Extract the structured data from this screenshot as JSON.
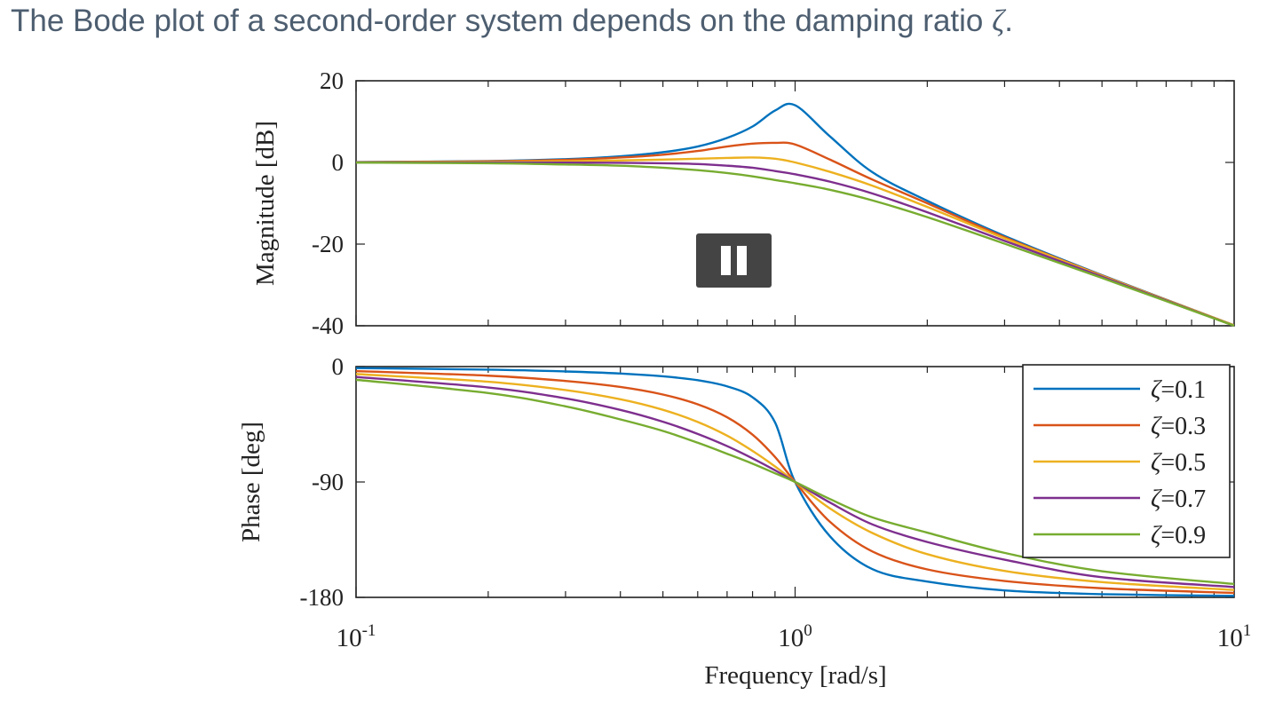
{
  "caption": {
    "text": "The Bode plot of a second-order system depends on the damping ratio ",
    "symbol": "ζ",
    "end": "."
  },
  "player": {
    "pause_icon": "pause-icon"
  },
  "chart_data": [
    {
      "type": "line",
      "panel": "magnitude",
      "xlabel": "",
      "ylabel": "Magnitude [dB]",
      "xscale": "log",
      "xlim": [
        0.1,
        10
      ],
      "ylim": [
        -40,
        20
      ],
      "yticks": [
        20,
        0,
        -20,
        -40
      ],
      "ytick_labels": [
        "20",
        "0",
        "-20",
        "-40"
      ],
      "xtick_labels": [],
      "grid": false,
      "x": [
        0.1,
        0.2,
        0.3,
        0.4,
        0.5,
        0.6,
        0.7,
        0.8,
        0.9,
        1.0,
        1.2,
        1.5,
        2,
        3,
        5,
        10
      ],
      "series": [
        {
          "name": "ζ=0.1",
          "color": "#0072bd",
          "values": [
            0.09,
            0.34,
            0.8,
            1.5,
            2.5,
            3.9,
            6.0,
            8.8,
            12.7,
            14.0,
            6.4,
            -2.4,
            -9.4,
            -18.0,
            -27.6,
            -39.9
          ]
        },
        {
          "name": "ζ=0.3",
          "color": "#d95319",
          "values": [
            0.07,
            0.28,
            0.64,
            1.2,
            1.9,
            2.8,
            3.9,
            4.6,
            4.8,
            4.4,
            0.7,
            -4.2,
            -10.0,
            -18.3,
            -27.7,
            -39.9
          ]
        },
        {
          "name": "ζ=0.5",
          "color": "#edb120",
          "values": [
            0.04,
            0.14,
            0.29,
            0.49,
            0.7,
            0.9,
            1.1,
            1.2,
            0.9,
            0.0,
            -2.3,
            -5.7,
            -10.9,
            -18.6,
            -27.8,
            -39.9
          ]
        },
        {
          "name": "ζ=0.7",
          "color": "#7e2f8e",
          "values": [
            0.0,
            -0.01,
            -0.04,
            -0.1,
            -0.2,
            -0.4,
            -0.8,
            -1.3,
            -2.1,
            -2.9,
            -4.7,
            -7.6,
            -12.2,
            -19.2,
            -28.0,
            -40.0
          ]
        },
        {
          "name": "ζ=0.9",
          "color": "#77ac30",
          "values": [
            -0.05,
            -0.2,
            -0.5,
            -0.8,
            -1.3,
            -1.9,
            -2.6,
            -3.4,
            -4.3,
            -5.1,
            -6.7,
            -9.3,
            -13.4,
            -19.9,
            -28.3,
            -40.0
          ]
        }
      ]
    },
    {
      "type": "line",
      "panel": "phase",
      "xlabel": "Frequency [rad/s]",
      "ylabel": "Phase [deg]",
      "xscale": "log",
      "xlim": [
        0.1,
        10
      ],
      "ylim": [
        -180,
        0
      ],
      "yticks": [
        0,
        -90,
        -180
      ],
      "ytick_labels": [
        "0",
        "-90",
        "-180"
      ],
      "xticks": [
        0.1,
        1,
        10
      ],
      "xtick_labels": [
        {
          "base": "10",
          "exp": "-1"
        },
        {
          "base": "10",
          "exp": "0"
        },
        {
          "base": "10",
          "exp": "1"
        }
      ],
      "grid": false,
      "legend": "top-right",
      "x": [
        0.1,
        0.2,
        0.3,
        0.4,
        0.5,
        0.6,
        0.7,
        0.8,
        0.9,
        1.0,
        1.2,
        1.5,
        2,
        3,
        5,
        10
      ],
      "series": [
        {
          "name": "ζ=0.1",
          "color": "#0072bd",
          "values": [
            -1.2,
            -2.4,
            -3.8,
            -5.4,
            -7.6,
            -10.6,
            -15.4,
            -23.9,
            -43.5,
            -90.0,
            -132.3,
            -158.0,
            -167.7,
            -174.6,
            -177.5,
            -178.8
          ]
        },
        {
          "name": "ζ=0.3",
          "color": "#d95319",
          "values": [
            -3.5,
            -7.1,
            -11.2,
            -15.9,
            -21.8,
            -29.4,
            -39.5,
            -53.1,
            -70.5,
            -90.0,
            -121.0,
            -144.2,
            -158.2,
            -167.2,
            -172.9,
            -176.5
          ]
        },
        {
          "name": "ζ=0.5",
          "color": "#edb120",
          "values": [
            -5.8,
            -11.8,
            -18.3,
            -25.5,
            -33.7,
            -43.2,
            -53.9,
            -65.8,
            -77.9,
            -90.0,
            -110.6,
            -129.8,
            -146.3,
            -159.4,
            -168.1,
            -174.2
          ]
        },
        {
          "name": "ζ=0.7",
          "color": "#7e2f8e",
          "values": [
            -8.1,
            -16.3,
            -24.8,
            -33.8,
            -43.0,
            -52.5,
            -62.0,
            -71.6,
            -80.9,
            -90.0,
            -106.0,
            -123.1,
            -136.8,
            -150.6,
            -164.3,
            -171.9
          ]
        },
        {
          "name": "ζ=0.9",
          "color": "#77ac30",
          "values": [
            -10.3,
            -20.6,
            -31.0,
            -41.2,
            -50.2,
            -59.4,
            -68.0,
            -75.7,
            -83.2,
            -90.0,
            -103.3,
            -117.6,
            -129.5,
            -145.3,
            -159.6,
            -169.6
          ]
        }
      ]
    }
  ]
}
